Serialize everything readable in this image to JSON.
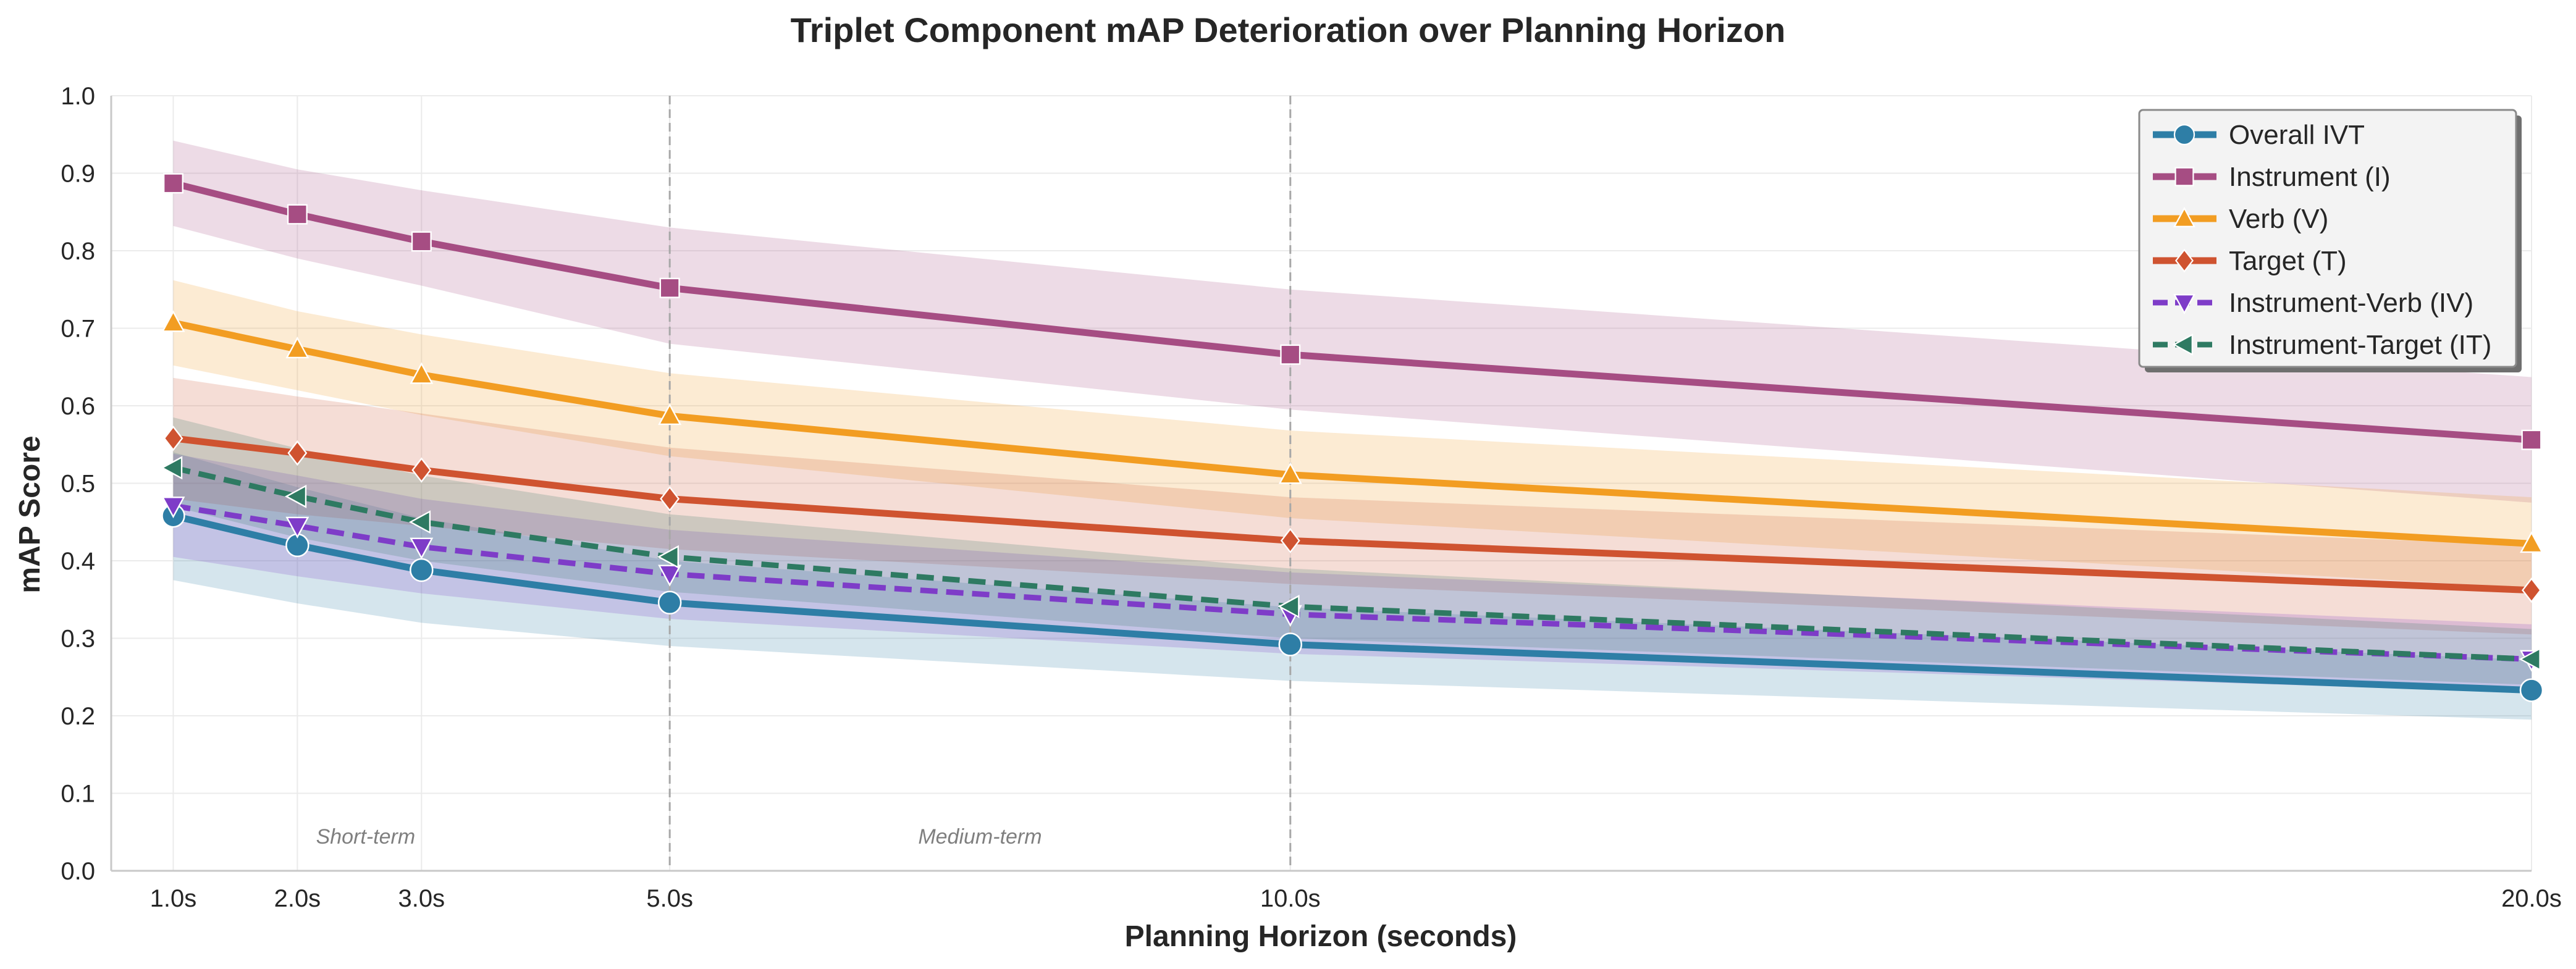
{
  "chart_data": {
    "type": "line",
    "title": "Triplet Component mAP Deterioration over Planning Horizon",
    "xlabel": "Planning Horizon (seconds)",
    "ylabel": "mAP Score",
    "x": [
      1,
      2,
      3,
      5,
      10,
      20
    ],
    "x_tick_labels": [
      "1.0s",
      "2.0s",
      "3.0s",
      "5.0s",
      "10.0s",
      "20.0s"
    ],
    "xlim": [
      0.5,
      20
    ],
    "ylim": [
      0,
      1.0
    ],
    "y_ticks": [
      0.0,
      0.1,
      0.2,
      0.3,
      0.4,
      0.5,
      0.6,
      0.7,
      0.8,
      0.9,
      1.0
    ],
    "y_tick_labels": [
      "0.0",
      "0.1",
      "0.2",
      "0.3",
      "0.4",
      "0.5",
      "0.6",
      "0.7",
      "0.8",
      "0.9",
      "1.0"
    ],
    "grid": true,
    "legend_position": "top-right",
    "vertical_reference_lines": [
      5,
      10
    ],
    "annotations": [
      {
        "text": "Short-term",
        "x": 2.55,
        "y": 0.035
      },
      {
        "text": "Medium-term",
        "x": 7.5,
        "y": 0.035
      }
    ],
    "series": [
      {
        "name": "Overall IVT",
        "color": "#2e7ea6",
        "marker": "circle",
        "dashed": false,
        "values": [
          0.458,
          0.42,
          0.388,
          0.346,
          0.292,
          0.233
        ],
        "band_low": [
          0.375,
          0.345,
          0.32,
          0.29,
          0.245,
          0.195
        ],
        "band_high": [
          0.54,
          0.495,
          0.455,
          0.4,
          0.34,
          0.272
        ]
      },
      {
        "name": "Instrument (I)",
        "color": "#a64d83",
        "marker": "square",
        "dashed": false,
        "values": [
          0.887,
          0.847,
          0.812,
          0.752,
          0.666,
          0.556
        ],
        "band_low": [
          0.832,
          0.79,
          0.755,
          0.68,
          0.595,
          0.475
        ],
        "band_high": [
          0.942,
          0.905,
          0.878,
          0.83,
          0.75,
          0.637
        ]
      },
      {
        "name": "Verb (V)",
        "color": "#f29d22",
        "marker": "triangle-up",
        "dashed": false,
        "values": [
          0.707,
          0.673,
          0.64,
          0.587,
          0.511,
          0.422
        ],
        "band_low": [
          0.652,
          0.62,
          0.588,
          0.535,
          0.455,
          0.365
        ],
        "band_high": [
          0.762,
          0.722,
          0.692,
          0.642,
          0.568,
          0.482
        ]
      },
      {
        "name": "Target (T)",
        "color": "#cf5330",
        "marker": "diamond",
        "dashed": false,
        "values": [
          0.558,
          0.539,
          0.517,
          0.48,
          0.426,
          0.362
        ],
        "band_low": [
          0.48,
          0.46,
          0.445,
          0.415,
          0.37,
          0.305
        ],
        "band_high": [
          0.636,
          0.612,
          0.59,
          0.546,
          0.482,
          0.42
        ]
      },
      {
        "name": "Instrument-Verb (IV)",
        "color": "#7e3cc8",
        "marker": "triangle-down",
        "dashed": true,
        "values": [
          0.471,
          0.445,
          0.418,
          0.383,
          0.331,
          0.273
        ],
        "band_low": [
          0.405,
          0.38,
          0.358,
          0.325,
          0.28,
          0.23
        ],
        "band_high": [
          0.538,
          0.51,
          0.48,
          0.44,
          0.385,
          0.318
        ]
      },
      {
        "name": "Instrument-Target (IT)",
        "color": "#2e7a62",
        "marker": "triangle-left",
        "dashed": true,
        "values": [
          0.52,
          0.483,
          0.45,
          0.405,
          0.341,
          0.273
        ],
        "band_low": [
          0.47,
          0.43,
          0.4,
          0.36,
          0.3,
          0.24
        ],
        "band_high": [
          0.585,
          0.545,
          0.51,
          0.46,
          0.39,
          0.312
        ]
      }
    ]
  }
}
